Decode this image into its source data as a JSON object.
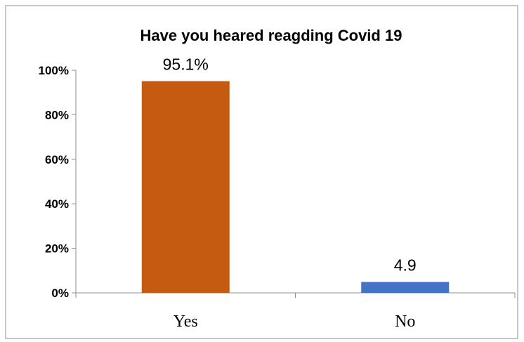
{
  "chart_data": {
    "type": "bar",
    "title": "Have you heared reagding Covid 19",
    "xlabel": "",
    "ylabel": "",
    "categories": [
      "Yes",
      "No"
    ],
    "values": [
      95.1,
      4.9
    ],
    "data_labels": [
      "95.1%",
      "4.9"
    ],
    "bar_colors": [
      "#C55A11",
      "#4472C4"
    ],
    "ylim": [
      0,
      100
    ],
    "yticks": [
      0,
      20,
      40,
      60,
      80,
      100
    ],
    "ytick_labels": [
      "0%",
      "20%",
      "40%",
      "60%",
      "80%",
      "100%"
    ],
    "grid": false,
    "legend": "none"
  }
}
